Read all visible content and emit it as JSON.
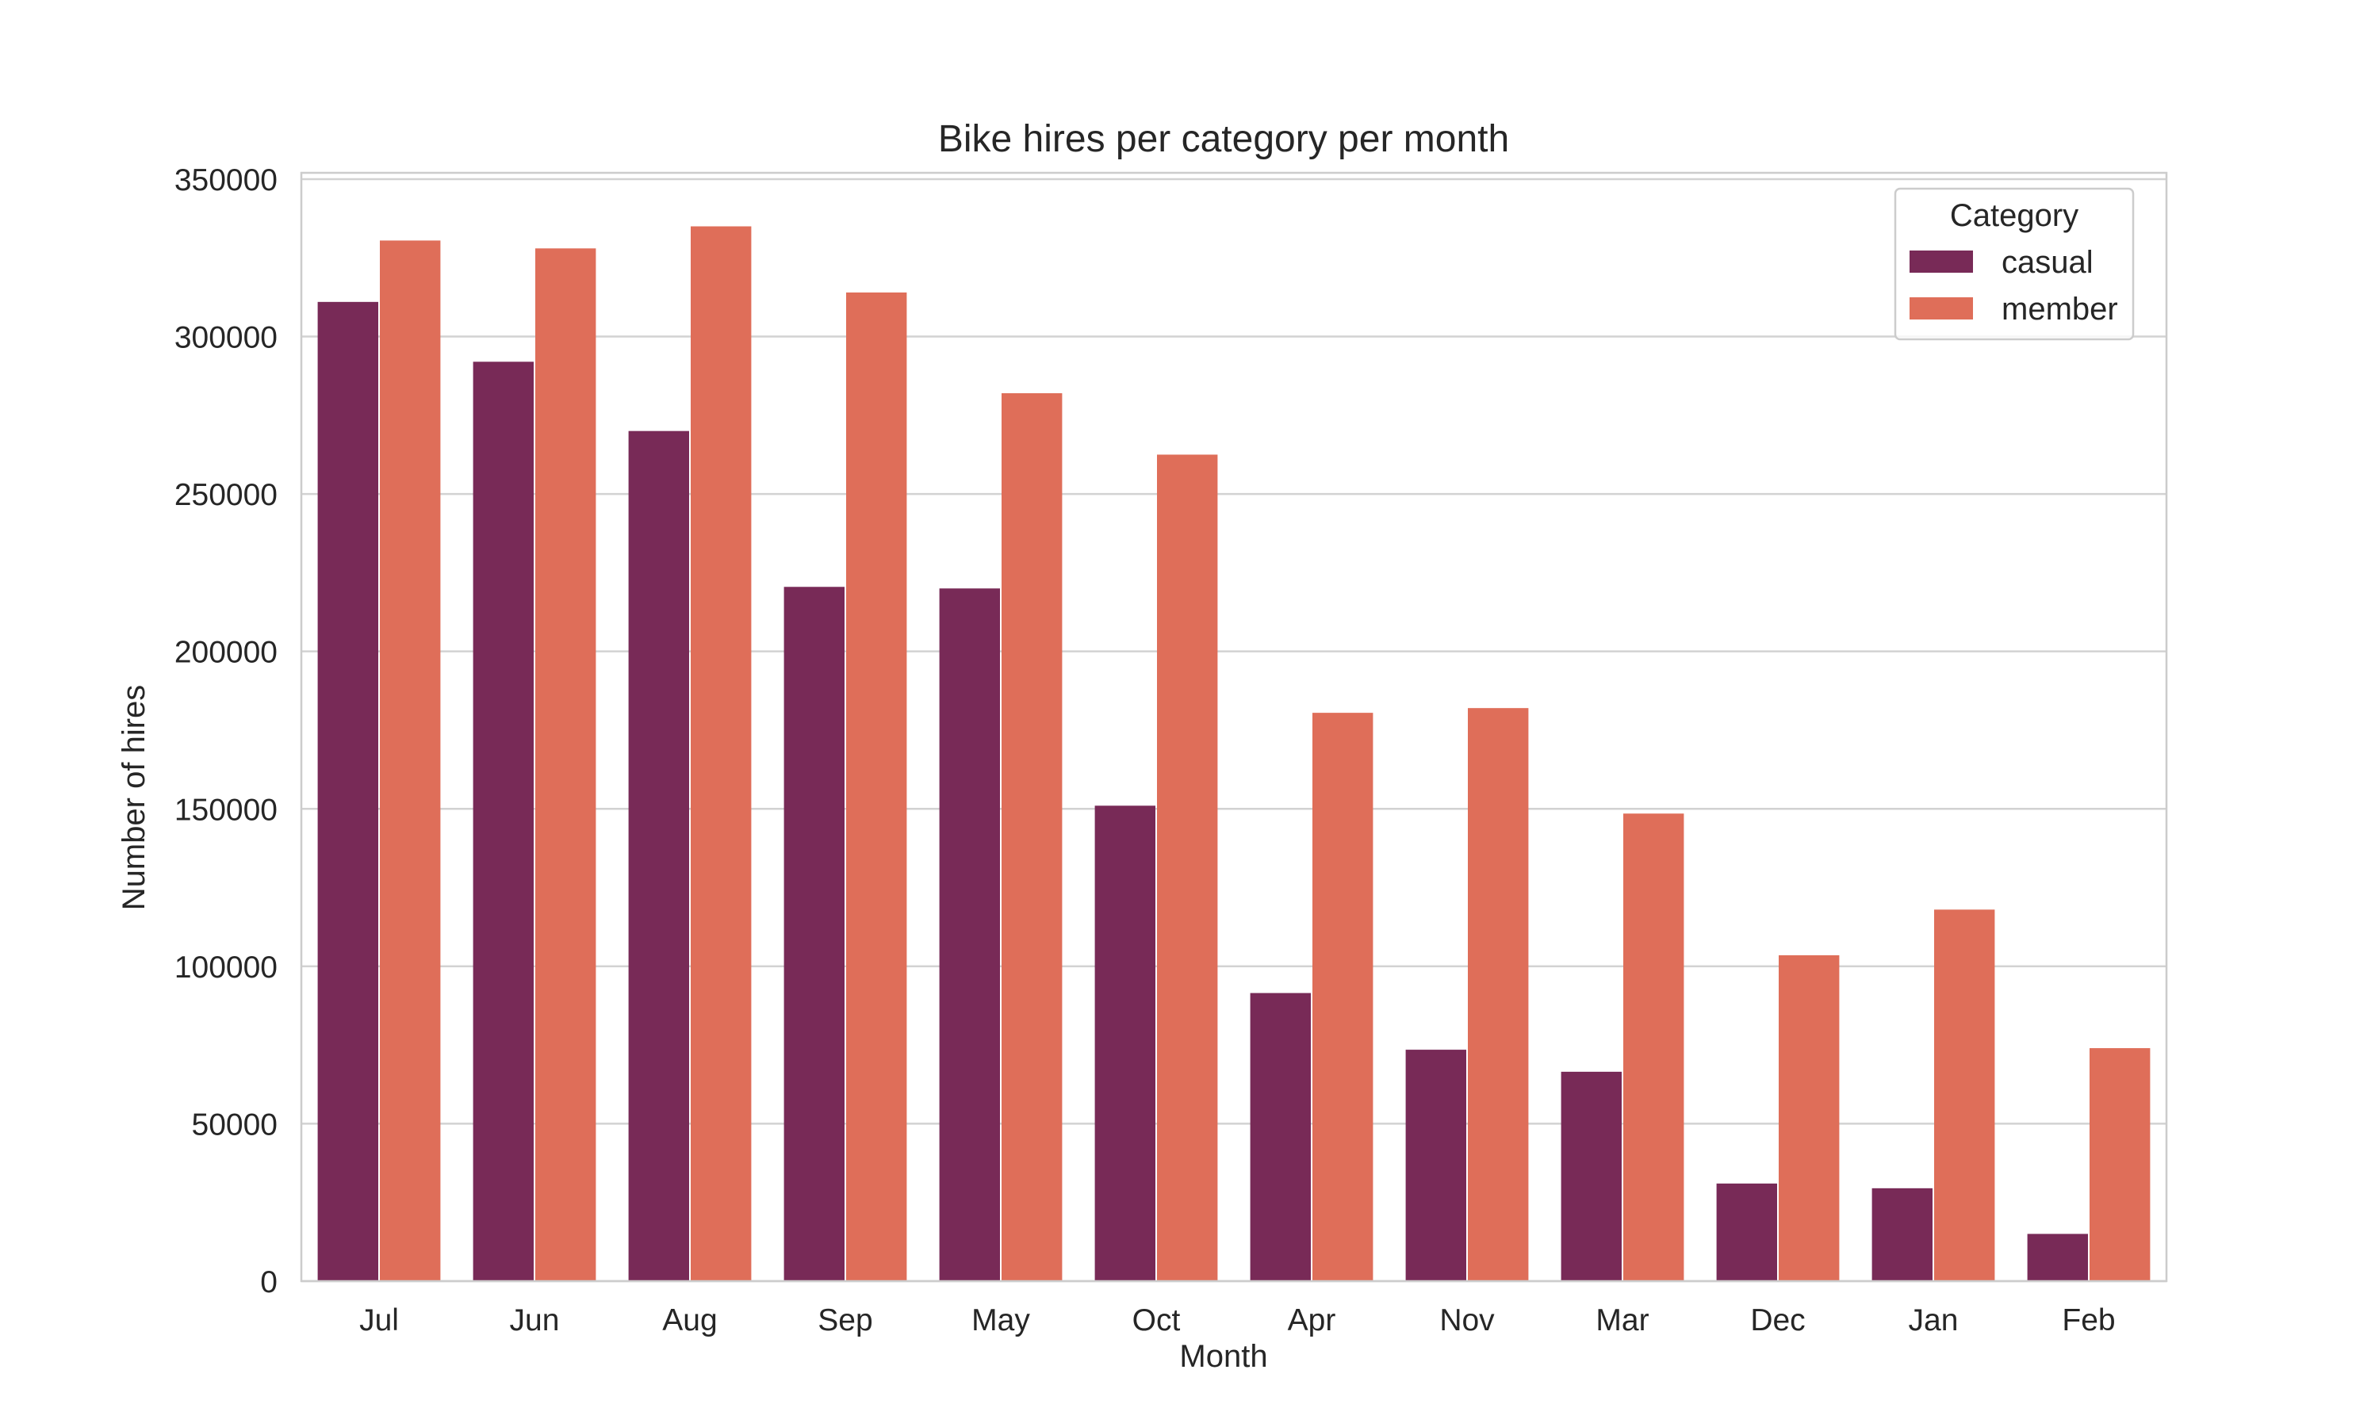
{
  "chart_data": {
    "type": "bar",
    "title": "Bike hires per category per month",
    "xlabel": "Month",
    "ylabel": "Number of hires",
    "ylim": [
      0,
      352000
    ],
    "yticks": [
      0,
      50000,
      100000,
      150000,
      200000,
      250000,
      300000,
      350000
    ],
    "grid": "y",
    "categories": [
      "Jul",
      "Jun",
      "Aug",
      "Sep",
      "May",
      "Oct",
      "Apr",
      "Nov",
      "Mar",
      "Dec",
      "Jan",
      "Feb"
    ],
    "series": [
      {
        "name": "casual",
        "color": "#782a57",
        "values": [
          311000,
          292000,
          270000,
          220500,
          220000,
          151000,
          91500,
          73500,
          66500,
          31000,
          29500,
          15000
        ]
      },
      {
        "name": "member",
        "color": "#df6e59",
        "values": [
          330500,
          328000,
          335000,
          314000,
          282000,
          262500,
          180500,
          182000,
          148500,
          103500,
          118000,
          74000
        ]
      }
    ],
    "legend": {
      "title": "Category",
      "placement": "top-right"
    }
  },
  "colors": {
    "grid": "#d2d2d2",
    "frame": "#cccccc",
    "text": "#262626",
    "background": "#ffffff"
  }
}
